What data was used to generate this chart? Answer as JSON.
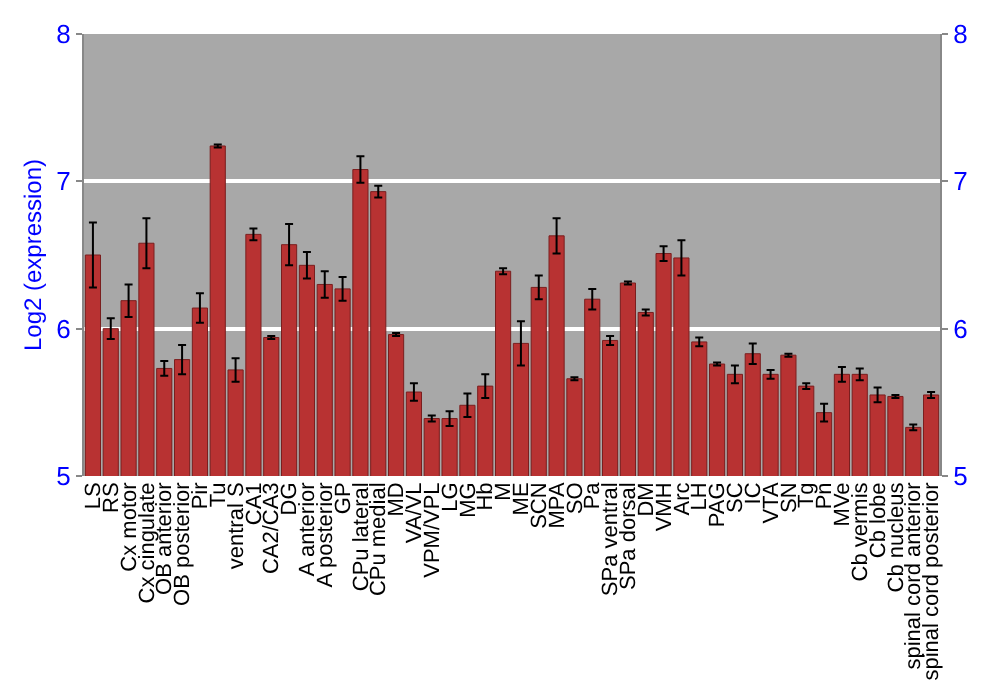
{
  "chart_data": {
    "type": "bar",
    "ylabel": "Log2 (expression)",
    "categories": [
      "LS",
      "RS",
      "Cx motor",
      "Cx cingulate",
      "OB anterior",
      "OB posterior",
      "Pir",
      "Tu",
      "ventral S",
      "CA1",
      "CA2/CA3",
      "DG",
      "A anterior",
      "A posterior",
      "GP",
      "CPu lateral",
      "CPu medial",
      "MD",
      "VA/VL",
      "VPM/VPL",
      "LG",
      "MG",
      "Hb",
      "M",
      "ME",
      "SCN",
      "MPA",
      "SO",
      "Pa",
      "SPa ventral",
      "SPa dorsal",
      "DM",
      "VMH",
      "Arc",
      "LH",
      "PAG",
      "SC",
      "IC",
      "VTA",
      "SN",
      "Tg",
      "Pn",
      "MVe",
      "Cb vermis",
      "Cb lobe",
      "Cb nucleus",
      "spinal cord anterior",
      "spinal cord posterior"
    ],
    "values": [
      6.5,
      6.0,
      6.19,
      6.58,
      5.73,
      5.79,
      6.14,
      7.24,
      5.72,
      6.64,
      5.94,
      6.57,
      6.43,
      6.3,
      6.27,
      7.08,
      6.93,
      5.96,
      5.57,
      5.39,
      5.39,
      5.48,
      5.61,
      6.39,
      5.9,
      6.28,
      6.63,
      5.66,
      6.2,
      5.92,
      6.31,
      6.11,
      6.51,
      6.48,
      5.91,
      5.76,
      5.69,
      5.83,
      5.69,
      5.82,
      5.61,
      5.43,
      5.69,
      5.69,
      5.55,
      5.54,
      5.33,
      5.55
    ],
    "errors": [
      0.22,
      0.07,
      0.11,
      0.17,
      0.05,
      0.1,
      0.1,
      0.01,
      0.08,
      0.04,
      0.01,
      0.14,
      0.09,
      0.09,
      0.08,
      0.09,
      0.04,
      0.01,
      0.06,
      0.02,
      0.05,
      0.08,
      0.08,
      0.02,
      0.15,
      0.08,
      0.12,
      0.01,
      0.07,
      0.03,
      0.01,
      0.02,
      0.05,
      0.12,
      0.03,
      0.01,
      0.06,
      0.07,
      0.03,
      0.01,
      0.02,
      0.06,
      0.05,
      0.04,
      0.05,
      0.01,
      0.02,
      0.02
    ],
    "color": "#b83232",
    "ylim": [
      5,
      8
    ],
    "yticks": [
      5,
      6,
      7,
      8
    ],
    "y2lim": [
      5,
      8
    ],
    "y2ticks": [
      5,
      6,
      7,
      8
    ],
    "grid": "y",
    "legend": false
  }
}
